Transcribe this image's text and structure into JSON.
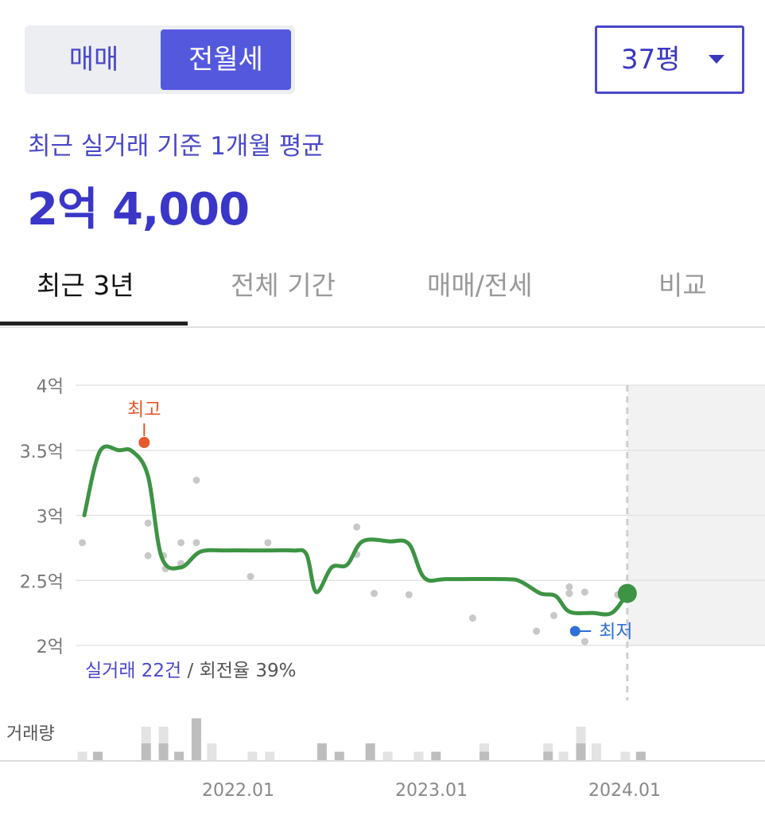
{
  "toggle": {
    "sale_label": "매매",
    "rent_label": "전월세",
    "selected": "전월세"
  },
  "size_select": {
    "value": "37평",
    "icon": "caret-down-icon"
  },
  "summary": {
    "label": "최근 실거래 기준 1개월 평균",
    "value": "2억 4,000"
  },
  "tabs": [
    {
      "label": "최근 3년",
      "active": true
    },
    {
      "label": "전체 기간",
      "active": false
    },
    {
      "label": "매매/전세",
      "active": false
    },
    {
      "label": "비교",
      "active": false
    }
  ],
  "chart_labels": {
    "count_prefix": "실거래 22건",
    "count_suffix": " / 회전율 39%",
    "volume_label": "거래량",
    "high_marker": "최고",
    "low_marker": "최저"
  },
  "colors": {
    "accent": "#4a48c8",
    "line": "#3d9444",
    "high": "#e8572c",
    "low": "#2e6fd8",
    "point": "#c8c8c8"
  },
  "chart_data": {
    "type": "line",
    "y_unit": "억",
    "ylim": [
      2.0,
      4.0
    ],
    "y_ticks": [
      "2억",
      "2.5억",
      "3억",
      "3.5억",
      "4억"
    ],
    "y_tick_values": [
      2.0,
      2.5,
      3.0,
      3.5,
      4.0
    ],
    "x_ticks": [
      "2022.01",
      "2023.01",
      "2024.01"
    ],
    "x_tick_values": [
      2022.0,
      2023.0,
      2024.0
    ],
    "xlim": [
      2021.2,
      2024.6
    ],
    "grid": true,
    "future_shade_from": 2024.03,
    "series": [
      {
        "type": "smooth-line",
        "points": [
          [
            2021.22,
            3.0
          ],
          [
            2021.3,
            3.49
          ],
          [
            2021.4,
            3.5
          ],
          [
            2021.47,
            3.49
          ],
          [
            2021.55,
            3.3
          ],
          [
            2021.62,
            2.68
          ],
          [
            2021.72,
            2.6
          ],
          [
            2021.82,
            2.72
          ],
          [
            2021.95,
            2.73
          ],
          [
            2022.15,
            2.73
          ],
          [
            2022.3,
            2.73
          ],
          [
            2022.37,
            2.7
          ],
          [
            2022.42,
            2.41
          ],
          [
            2022.5,
            2.6
          ],
          [
            2022.58,
            2.62
          ],
          [
            2022.66,
            2.8
          ],
          [
            2022.8,
            2.8
          ],
          [
            2022.9,
            2.78
          ],
          [
            2022.98,
            2.52
          ],
          [
            2023.1,
            2.51
          ],
          [
            2023.4,
            2.51
          ],
          [
            2023.48,
            2.49
          ],
          [
            2023.58,
            2.4
          ],
          [
            2023.66,
            2.38
          ],
          [
            2023.73,
            2.26
          ],
          [
            2023.85,
            2.25
          ],
          [
            2023.95,
            2.25
          ],
          [
            2024.03,
            2.4
          ]
        ]
      }
    ],
    "scatter": [
      [
        2021.21,
        2.79
      ],
      [
        2021.55,
        2.94
      ],
      [
        2021.55,
        2.69
      ],
      [
        2021.63,
        2.69
      ],
      [
        2021.64,
        2.59
      ],
      [
        2021.72,
        2.63
      ],
      [
        2021.72,
        2.79
      ],
      [
        2021.8,
        3.27
      ],
      [
        2021.8,
        2.79
      ],
      [
        2022.08,
        2.53
      ],
      [
        2022.17,
        2.79
      ],
      [
        2022.63,
        2.91
      ],
      [
        2022.63,
        2.7
      ],
      [
        2022.72,
        2.4
      ],
      [
        2022.9,
        2.39
      ],
      [
        2023.23,
        2.21
      ],
      [
        2023.56,
        2.11
      ],
      [
        2023.65,
        2.23
      ],
      [
        2023.73,
        2.45
      ],
      [
        2023.73,
        2.4
      ],
      [
        2023.81,
        2.41
      ],
      [
        2023.81,
        2.03
      ],
      [
        2023.98,
        2.39
      ]
    ],
    "high": {
      "x": 2021.53,
      "y": 3.56
    },
    "low": {
      "x": 2023.76,
      "y": 2.11
    },
    "last": {
      "x": 2024.03,
      "y": 2.4
    },
    "volume": [
      {
        "x": 2021.21,
        "light": 1,
        "dark": 0
      },
      {
        "x": 2021.29,
        "light": 0,
        "dark": 1
      },
      {
        "x": 2021.54,
        "light": 2,
        "dark": 2
      },
      {
        "x": 2021.63,
        "light": 2,
        "dark": 2
      },
      {
        "x": 2021.71,
        "light": 0,
        "dark": 1
      },
      {
        "x": 2021.8,
        "light": 0,
        "dark": 5
      },
      {
        "x": 2021.88,
        "light": 2,
        "dark": 0
      },
      {
        "x": 2022.09,
        "light": 1,
        "dark": 0
      },
      {
        "x": 2022.18,
        "light": 1,
        "dark": 0
      },
      {
        "x": 2022.45,
        "light": 0,
        "dark": 2
      },
      {
        "x": 2022.54,
        "light": 0,
        "dark": 1
      },
      {
        "x": 2022.7,
        "light": 0,
        "dark": 2
      },
      {
        "x": 2022.79,
        "light": 1,
        "dark": 0
      },
      {
        "x": 2022.95,
        "light": 1,
        "dark": 0
      },
      {
        "x": 2023.04,
        "light": 0,
        "dark": 1
      },
      {
        "x": 2023.29,
        "light": 1,
        "dark": 1
      },
      {
        "x": 2023.62,
        "light": 1,
        "dark": 1
      },
      {
        "x": 2023.7,
        "light": 1,
        "dark": 0
      },
      {
        "x": 2023.79,
        "light": 2,
        "dark": 2
      },
      {
        "x": 2023.87,
        "light": 2,
        "dark": 0
      },
      {
        "x": 2024.02,
        "light": 1,
        "dark": 0
      },
      {
        "x": 2024.1,
        "light": 0,
        "dark": 1
      }
    ]
  }
}
